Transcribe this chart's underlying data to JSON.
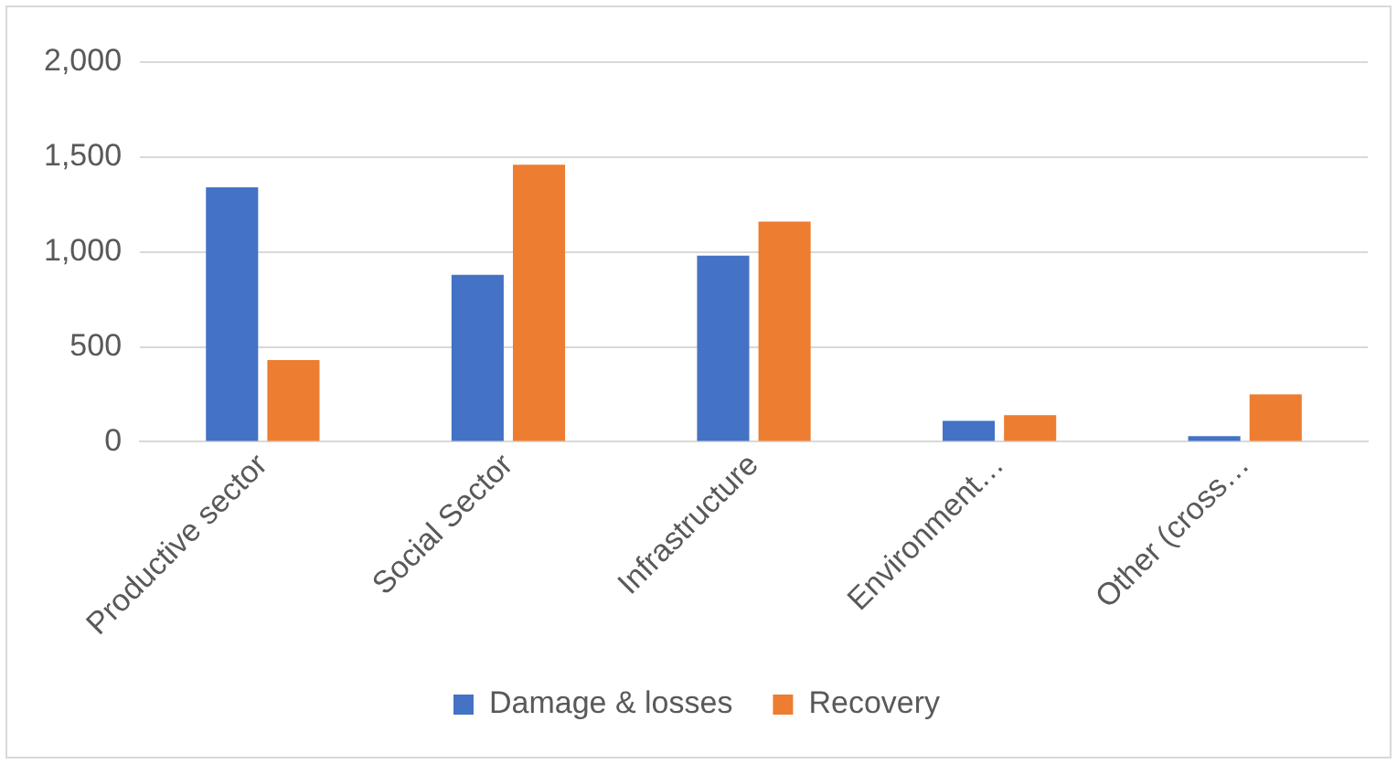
{
  "chart_data": {
    "type": "bar",
    "categories": [
      "Productive sector",
      "Social Sector",
      "Infrastructure",
      "Environment…",
      "Other (cross…"
    ],
    "series": [
      {
        "name": "Damage & losses",
        "color": "#4472c4",
        "values": [
          1340,
          880,
          980,
          110,
          30
        ]
      },
      {
        "name": "Recovery",
        "color": "#ed7d31",
        "values": [
          430,
          1460,
          1160,
          140,
          250
        ]
      }
    ],
    "ylim": [
      0,
      2000
    ],
    "yticks": [
      {
        "value": 0,
        "label": "0"
      },
      {
        "value": 500,
        "label": "500"
      },
      {
        "value": 1000,
        "label": "1,000"
      },
      {
        "value": 1500,
        "label": "1,500"
      },
      {
        "value": 2000,
        "label": "2,000"
      }
    ],
    "grid": "y",
    "legend": "bottom"
  }
}
